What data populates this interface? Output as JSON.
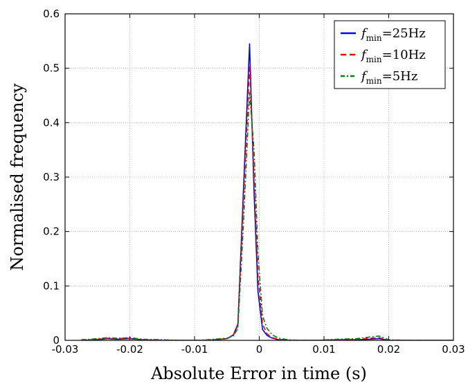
{
  "chart_data": {
    "type": "line",
    "title": "",
    "xlabel": "Absolute Error in time (s)",
    "ylabel": "Normalised frequency",
    "xlim": [
      -0.03,
      0.03
    ],
    "ylim": [
      0,
      0.6
    ],
    "xticks": [
      -0.03,
      -0.02,
      -0.01,
      0,
      0.01,
      0.02,
      0.03
    ],
    "xtick_labels": [
      "-0.03",
      "-0.02",
      "-0.01",
      "0",
      "0.01",
      "0.02",
      "0.03"
    ],
    "yticks": [
      0,
      0.1,
      0.2,
      0.3,
      0.4,
      0.5,
      0.6
    ],
    "ytick_labels": [
      "0",
      "0.1",
      "0.2",
      "0.3",
      "0.4",
      "0.5",
      "0.6"
    ],
    "grid": true,
    "legend_position": "top-right",
    "series": [
      {
        "legend_f": "f",
        "legend_sub": "min",
        "legend_rest": "=25Hz",
        "color": "#0000ff",
        "dash": "solid",
        "x": [
          -0.0275,
          -0.025,
          -0.0235,
          -0.022,
          -0.02,
          -0.018,
          -0.015,
          -0.012,
          -0.01,
          -0.008,
          -0.006,
          -0.005,
          -0.004,
          -0.0033,
          -0.0025,
          -0.0015,
          -0.0008,
          -0.0002,
          0.0005,
          0.0012,
          0.002,
          0.003,
          0.0045,
          0.006,
          0.009,
          0.012,
          0.015,
          0.017,
          0.0185,
          0.02,
          0.023,
          0.027,
          0.03
        ],
        "y": [
          0.0,
          0.001,
          0.003,
          0.002,
          0.003,
          0.001,
          0.0,
          0.0,
          0.0,
          0.0,
          0.002,
          0.003,
          0.01,
          0.03,
          0.26,
          0.545,
          0.27,
          0.09,
          0.02,
          0.009,
          0.004,
          0.001,
          0.0,
          0.0,
          0.0,
          0.001,
          0.001,
          0.002,
          0.003,
          0.0,
          0.0,
          0.0,
          0.0
        ]
      },
      {
        "legend_f": "f",
        "legend_sub": "min",
        "legend_rest": "=10Hz",
        "color": "#ff0000",
        "dash": "dashed",
        "x": [
          -0.0275,
          -0.025,
          -0.0235,
          -0.022,
          -0.02,
          -0.018,
          -0.015,
          -0.012,
          -0.01,
          -0.008,
          -0.006,
          -0.005,
          -0.004,
          -0.0033,
          -0.0025,
          -0.0015,
          -0.0008,
          -0.0002,
          0.0005,
          0.0012,
          0.002,
          0.003,
          0.0045,
          0.006,
          0.009,
          0.012,
          0.015,
          0.017,
          0.0185,
          0.02,
          0.023,
          0.027,
          0.03
        ],
        "y": [
          0.0,
          0.002,
          0.004,
          0.003,
          0.004,
          0.001,
          0.0,
          0.0,
          0.0,
          0.0,
          0.002,
          0.003,
          0.009,
          0.028,
          0.24,
          0.505,
          0.3,
          0.12,
          0.03,
          0.012,
          0.005,
          0.002,
          0.0,
          0.0,
          0.0,
          0.001,
          0.002,
          0.004,
          0.005,
          0.0,
          0.0,
          0.0,
          0.0
        ]
      },
      {
        "legend_f": "f",
        "legend_sub": "min",
        "legend_rest": "=5Hz",
        "color": "#008000",
        "dash": "dashdot",
        "x": [
          -0.0275,
          -0.025,
          -0.0235,
          -0.022,
          -0.02,
          -0.018,
          -0.015,
          -0.012,
          -0.01,
          -0.008,
          -0.006,
          -0.005,
          -0.004,
          -0.0033,
          -0.0025,
          -0.0015,
          -0.0008,
          -0.0002,
          0.0005,
          0.0012,
          0.002,
          0.003,
          0.0045,
          0.006,
          0.009,
          0.012,
          0.015,
          0.017,
          0.0185,
          0.02,
          0.023,
          0.027,
          0.03
        ],
        "y": [
          0.001,
          0.003,
          0.005,
          0.004,
          0.005,
          0.002,
          0.001,
          0.0,
          0.0,
          0.001,
          0.003,
          0.004,
          0.008,
          0.022,
          0.2,
          0.455,
          0.35,
          0.16,
          0.045,
          0.022,
          0.01,
          0.004,
          0.001,
          0.0,
          0.0,
          0.002,
          0.003,
          0.006,
          0.008,
          0.001,
          0.0,
          0.0,
          0.0
        ]
      }
    ]
  }
}
